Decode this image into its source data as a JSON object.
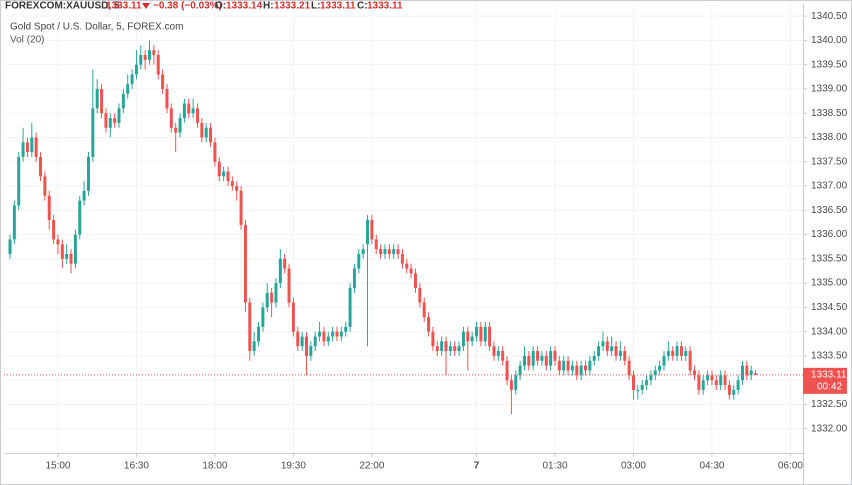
{
  "header": {
    "symbol": "FOREXCOM:XAUUSD, 5",
    "change": "−0.38 (−0.03%)",
    "open_label": "O:",
    "high_label": "H:",
    "low_label": "L:",
    "close_label": "C:"
  },
  "chart_data": {
    "type": "candlestick",
    "title": "Gold Spot / U.S. Dollar, 5, FOREX.com",
    "subtitle": "Vol (20)",
    "countdown": "00:42",
    "up_color": "#26a69a",
    "down_color": "#ef5350",
    "grid": true,
    "ylim": [
      1331.5,
      1340.75
    ],
    "yticks": [
      {
        "value": 1332,
        "label": "1332.00"
      },
      {
        "value": 1332.5,
        "label": "1332.50"
      },
      {
        "value": 1333,
        "label": "1333.00"
      },
      {
        "value": 1333.5,
        "label": "1333.50"
      },
      {
        "value": 1334,
        "label": "1334.00"
      },
      {
        "value": 1334.5,
        "label": "1334.50"
      },
      {
        "value": 1335,
        "label": "1335.00"
      },
      {
        "value": 1335.5,
        "label": "1335.50"
      },
      {
        "value": 1336,
        "label": "1336.00"
      },
      {
        "value": 1336.5,
        "label": "1336.50"
      },
      {
        "value": 1337,
        "label": "1337.00"
      },
      {
        "value": 1337.5,
        "label": "1337.50"
      },
      {
        "value": 1338,
        "label": "1338.00"
      },
      {
        "value": 1338.5,
        "label": "1338.50"
      },
      {
        "value": 1339,
        "label": "1339.00"
      },
      {
        "value": 1339.5,
        "label": "1339.50"
      },
      {
        "value": 1340,
        "label": "1340.00"
      },
      {
        "value": 1340.5,
        "label": "1340.50"
      }
    ],
    "xticks": [
      {
        "value": 11,
        "label": "15:00"
      },
      {
        "value": 29,
        "label": "16:30"
      },
      {
        "value": 47,
        "label": "18:00"
      },
      {
        "value": 65,
        "label": "19:30"
      },
      {
        "value": 83,
        "label": "22:00"
      },
      {
        "value": 107,
        "label": "7"
      },
      {
        "value": 125,
        "label": "01:30"
      },
      {
        "value": 143,
        "label": "03:00"
      },
      {
        "value": 161,
        "label": "04:30"
      },
      {
        "value": 179,
        "label": "06:00"
      }
    ],
    "candles": [
      [
        1335.6,
        1336.0,
        1335.5,
        1335.9
      ],
      [
        1335.9,
        1336.7,
        1335.8,
        1336.6
      ],
      [
        1336.6,
        1337.7,
        1336.5,
        1337.6
      ],
      [
        1337.6,
        1338.2,
        1337.5,
        1337.9
      ],
      [
        1337.9,
        1338.0,
        1337.6,
        1337.7
      ],
      [
        1337.7,
        1338.3,
        1337.6,
        1338.0
      ],
      [
        1338.0,
        1338.1,
        1337.5,
        1337.6
      ],
      [
        1337.6,
        1337.7,
        1337.1,
        1337.2
      ],
      [
        1337.2,
        1337.3,
        1336.7,
        1336.8
      ],
      [
        1336.8,
        1336.9,
        1336.1,
        1336.3
      ],
      [
        1336.3,
        1336.4,
        1335.8,
        1335.9
      ],
      [
        1335.9,
        1336.0,
        1335.6,
        1335.8
      ],
      [
        1335.8,
        1335.9,
        1335.3,
        1335.5
      ],
      [
        1335.5,
        1335.8,
        1335.4,
        1335.6
      ],
      [
        1335.6,
        1335.7,
        1335.2,
        1335.4
      ],
      [
        1335.4,
        1336.1,
        1335.3,
        1336.0
      ],
      [
        1336.0,
        1336.8,
        1335.9,
        1336.7
      ],
      [
        1336.7,
        1337.1,
        1336.6,
        1336.9
      ],
      [
        1336.9,
        1337.7,
        1336.8,
        1337.6
      ],
      [
        1337.6,
        1339.4,
        1337.5,
        1338.6
      ],
      [
        1338.6,
        1339.2,
        1338.5,
        1339.0
      ],
      [
        1339.0,
        1339.1,
        1338.4,
        1338.5
      ],
      [
        1338.5,
        1338.6,
        1338.1,
        1338.2
      ],
      [
        1338.2,
        1338.5,
        1338.0,
        1338.4
      ],
      [
        1338.4,
        1338.5,
        1338.2,
        1338.3
      ],
      [
        1338.3,
        1338.7,
        1338.2,
        1338.6
      ],
      [
        1338.6,
        1339.0,
        1338.5,
        1338.9
      ],
      [
        1338.9,
        1339.3,
        1338.8,
        1339.1
      ],
      [
        1339.1,
        1339.4,
        1339.0,
        1339.3
      ],
      [
        1339.3,
        1339.8,
        1339.2,
        1339.5
      ],
      [
        1339.5,
        1339.9,
        1339.4,
        1339.7
      ],
      [
        1339.7,
        1339.8,
        1339.4,
        1339.6
      ],
      [
        1339.6,
        1340.0,
        1339.5,
        1339.8
      ],
      [
        1339.8,
        1339.9,
        1339.5,
        1339.7
      ],
      [
        1339.7,
        1339.8,
        1339.2,
        1339.3
      ],
      [
        1339.3,
        1339.4,
        1338.9,
        1339.0
      ],
      [
        1339.0,
        1339.1,
        1338.5,
        1338.6
      ],
      [
        1338.6,
        1338.7,
        1338.1,
        1338.2
      ],
      [
        1338.2,
        1338.3,
        1337.7,
        1338.1
      ],
      [
        1338.1,
        1338.5,
        1338.0,
        1338.4
      ],
      [
        1338.4,
        1338.8,
        1338.3,
        1338.7
      ],
      [
        1338.7,
        1338.8,
        1338.4,
        1338.5
      ],
      [
        1338.5,
        1338.8,
        1338.4,
        1338.6
      ],
      [
        1338.6,
        1338.7,
        1338.2,
        1338.3
      ],
      [
        1338.3,
        1338.4,
        1337.9,
        1338.0
      ],
      [
        1338.0,
        1338.3,
        1337.9,
        1338.2
      ],
      [
        1338.2,
        1338.3,
        1337.8,
        1337.9
      ],
      [
        1337.9,
        1338.0,
        1337.4,
        1337.5
      ],
      [
        1337.5,
        1337.6,
        1337.1,
        1337.2
      ],
      [
        1337.2,
        1337.4,
        1337.1,
        1337.3
      ],
      [
        1337.3,
        1337.4,
        1337.0,
        1337.1
      ],
      [
        1337.1,
        1337.2,
        1336.9,
        1337.0
      ],
      [
        1337.0,
        1337.1,
        1336.7,
        1336.9
      ],
      [
        1336.9,
        1337.0,
        1336.1,
        1336.2
      ],
      [
        1336.2,
        1336.3,
        1334.4,
        1334.6
      ],
      [
        1334.6,
        1334.7,
        1333.4,
        1333.6
      ],
      [
        1333.6,
        1334.0,
        1333.5,
        1333.8
      ],
      [
        1333.8,
        1334.2,
        1333.7,
        1334.1
      ],
      [
        1334.1,
        1334.6,
        1334.0,
        1334.5
      ],
      [
        1334.5,
        1335.0,
        1334.4,
        1334.8
      ],
      [
        1334.8,
        1334.9,
        1334.3,
        1334.6
      ],
      [
        1334.6,
        1335.1,
        1334.5,
        1335.0
      ],
      [
        1335.0,
        1335.7,
        1334.9,
        1335.5
      ],
      [
        1335.5,
        1335.6,
        1335.2,
        1335.3
      ],
      [
        1335.3,
        1335.4,
        1334.5,
        1334.6
      ],
      [
        1334.6,
        1334.7,
        1333.9,
        1334.0
      ],
      [
        1334.0,
        1334.1,
        1333.6,
        1333.7
      ],
      [
        1333.7,
        1334.0,
        1333.6,
        1333.9
      ],
      [
        1333.9,
        1334.0,
        1333.1,
        1333.5
      ],
      [
        1333.5,
        1333.8,
        1333.4,
        1333.7
      ],
      [
        1333.7,
        1334.0,
        1333.6,
        1333.9
      ],
      [
        1333.9,
        1334.2,
        1333.8,
        1334.0
      ],
      [
        1334.0,
        1334.1,
        1333.7,
        1333.8
      ],
      [
        1333.8,
        1334.0,
        1333.7,
        1333.9
      ],
      [
        1333.9,
        1334.1,
        1333.8,
        1334.0
      ],
      [
        1334.0,
        1334.1,
        1333.8,
        1333.9
      ],
      [
        1333.9,
        1334.1,
        1333.8,
        1334.0
      ],
      [
        1334.0,
        1334.2,
        1333.9,
        1334.1
      ],
      [
        1334.1,
        1335.0,
        1334.0,
        1334.9
      ],
      [
        1334.9,
        1335.4,
        1334.8,
        1335.3
      ],
      [
        1335.3,
        1335.7,
        1335.2,
        1335.6
      ],
      [
        1335.6,
        1335.8,
        1335.5,
        1335.7
      ],
      [
        1335.8,
        1336.4,
        1333.7,
        1336.3
      ],
      [
        1336.3,
        1336.4,
        1335.8,
        1335.9
      ],
      [
        1335.9,
        1336.0,
        1335.6,
        1335.7
      ],
      [
        1335.7,
        1335.8,
        1335.5,
        1335.6
      ],
      [
        1335.6,
        1335.8,
        1335.5,
        1335.7
      ],
      [
        1335.7,
        1335.8,
        1335.5,
        1335.6
      ],
      [
        1335.6,
        1335.8,
        1335.5,
        1335.7
      ],
      [
        1335.7,
        1335.8,
        1335.5,
        1335.6
      ],
      [
        1335.6,
        1335.7,
        1335.3,
        1335.4
      ],
      [
        1335.4,
        1335.5,
        1335.2,
        1335.3
      ],
      [
        1335.3,
        1335.4,
        1335.1,
        1335.2
      ],
      [
        1335.2,
        1335.3,
        1334.8,
        1334.9
      ],
      [
        1334.9,
        1335.0,
        1334.5,
        1334.6
      ],
      [
        1334.6,
        1334.7,
        1334.2,
        1334.3
      ],
      [
        1334.3,
        1334.4,
        1333.9,
        1334.0
      ],
      [
        1334.0,
        1334.1,
        1333.6,
        1333.7
      ],
      [
        1333.7,
        1333.8,
        1333.5,
        1333.6
      ],
      [
        1333.6,
        1333.9,
        1333.5,
        1333.8
      ],
      [
        1333.8,
        1333.9,
        1333.1,
        1333.6
      ],
      [
        1333.6,
        1333.8,
        1333.5,
        1333.7
      ],
      [
        1333.7,
        1333.8,
        1333.5,
        1333.6
      ],
      [
        1333.6,
        1333.8,
        1333.5,
        1333.7
      ],
      [
        1333.7,
        1334.1,
        1333.6,
        1334.0
      ],
      [
        1334.0,
        1334.1,
        1333.2,
        1333.8
      ],
      [
        1333.8,
        1334.0,
        1333.7,
        1333.9
      ],
      [
        1333.9,
        1334.2,
        1333.8,
        1334.1
      ],
      [
        1334.1,
        1334.2,
        1333.7,
        1333.8
      ],
      [
        1333.8,
        1334.2,
        1333.7,
        1334.1
      ],
      [
        1334.1,
        1334.2,
        1333.6,
        1333.7
      ],
      [
        1333.7,
        1333.8,
        1333.4,
        1333.5
      ],
      [
        1333.5,
        1333.7,
        1333.4,
        1333.6
      ],
      [
        1333.6,
        1333.7,
        1333.3,
        1333.4
      ],
      [
        1333.4,
        1333.5,
        1332.9,
        1333.0
      ],
      [
        1333.0,
        1333.1,
        1332.3,
        1332.8
      ],
      [
        1332.8,
        1333.2,
        1332.7,
        1333.1
      ],
      [
        1333.1,
        1333.4,
        1333.0,
        1333.3
      ],
      [
        1333.3,
        1333.7,
        1333.2,
        1333.5
      ],
      [
        1333.5,
        1333.6,
        1333.2,
        1333.3
      ],
      [
        1333.3,
        1333.7,
        1333.2,
        1333.6
      ],
      [
        1333.6,
        1333.7,
        1333.3,
        1333.4
      ],
      [
        1333.4,
        1333.6,
        1333.3,
        1333.5
      ],
      [
        1333.5,
        1333.6,
        1333.2,
        1333.3
      ],
      [
        1333.3,
        1333.7,
        1333.2,
        1333.6
      ],
      [
        1333.6,
        1333.7,
        1333.3,
        1333.4
      ],
      [
        1333.4,
        1333.5,
        1333.1,
        1333.2
      ],
      [
        1333.2,
        1333.5,
        1333.1,
        1333.4
      ],
      [
        1333.4,
        1333.5,
        1333.1,
        1333.2
      ],
      [
        1333.2,
        1333.4,
        1333.1,
        1333.3
      ],
      [
        1333.3,
        1333.4,
        1333.0,
        1333.1
      ],
      [
        1333.1,
        1333.4,
        1333.0,
        1333.3
      ],
      [
        1333.3,
        1333.4,
        1333.1,
        1333.2
      ],
      [
        1333.2,
        1333.5,
        1333.1,
        1333.4
      ],
      [
        1333.4,
        1333.6,
        1333.3,
        1333.5
      ],
      [
        1333.5,
        1333.8,
        1333.4,
        1333.7
      ],
      [
        1333.7,
        1334.0,
        1333.6,
        1333.8
      ],
      [
        1333.8,
        1333.9,
        1333.5,
        1333.6
      ],
      [
        1333.6,
        1333.9,
        1333.5,
        1333.7
      ],
      [
        1333.7,
        1333.8,
        1333.4,
        1333.5
      ],
      [
        1333.5,
        1333.8,
        1333.4,
        1333.6
      ],
      [
        1333.6,
        1333.7,
        1333.3,
        1333.4
      ],
      [
        1333.4,
        1333.5,
        1333.0,
        1333.1
      ],
      [
        1333.1,
        1333.2,
        1332.6,
        1332.8
      ],
      [
        1332.8,
        1332.9,
        1332.6,
        1332.8
      ],
      [
        1332.8,
        1333.0,
        1332.7,
        1332.9
      ],
      [
        1332.9,
        1333.1,
        1332.8,
        1333.0
      ],
      [
        1333.0,
        1333.2,
        1332.9,
        1333.1
      ],
      [
        1333.1,
        1333.3,
        1333.0,
        1333.2
      ],
      [
        1333.2,
        1333.4,
        1333.1,
        1333.3
      ],
      [
        1333.3,
        1333.6,
        1333.2,
        1333.5
      ],
      [
        1333.5,
        1333.8,
        1333.4,
        1333.6
      ],
      [
        1333.6,
        1333.7,
        1333.4,
        1333.5
      ],
      [
        1333.5,
        1333.8,
        1333.4,
        1333.7
      ],
      [
        1333.7,
        1333.8,
        1333.4,
        1333.5
      ],
      [
        1333.5,
        1333.7,
        1333.4,
        1333.6
      ],
      [
        1333.6,
        1333.7,
        1333.1,
        1333.2
      ],
      [
        1333.2,
        1333.3,
        1333.0,
        1333.1
      ],
      [
        1333.1,
        1333.2,
        1332.7,
        1332.8
      ],
      [
        1332.8,
        1333.1,
        1332.7,
        1333.0
      ],
      [
        1333.0,
        1333.2,
        1332.9,
        1333.1
      ],
      [
        1333.1,
        1333.2,
        1332.9,
        1333.0
      ],
      [
        1333.0,
        1333.1,
        1332.8,
        1332.9
      ],
      [
        1332.9,
        1333.2,
        1332.8,
        1333.1
      ],
      [
        1333.1,
        1333.2,
        1332.8,
        1332.9
      ],
      [
        1332.9,
        1333.0,
        1332.6,
        1332.7
      ],
      [
        1332.7,
        1332.9,
        1332.6,
        1332.8
      ],
      [
        1332.8,
        1333.1,
        1332.7,
        1333.0
      ],
      [
        1333.0,
        1333.4,
        1332.9,
        1333.3
      ],
      [
        1333.3,
        1333.4,
        1333.0,
        1333.1
      ],
      [
        1333.1,
        1333.3,
        1333.0,
        1333.2
      ],
      [
        1333.14,
        1333.21,
        1333.11,
        1333.11
      ]
    ]
  }
}
